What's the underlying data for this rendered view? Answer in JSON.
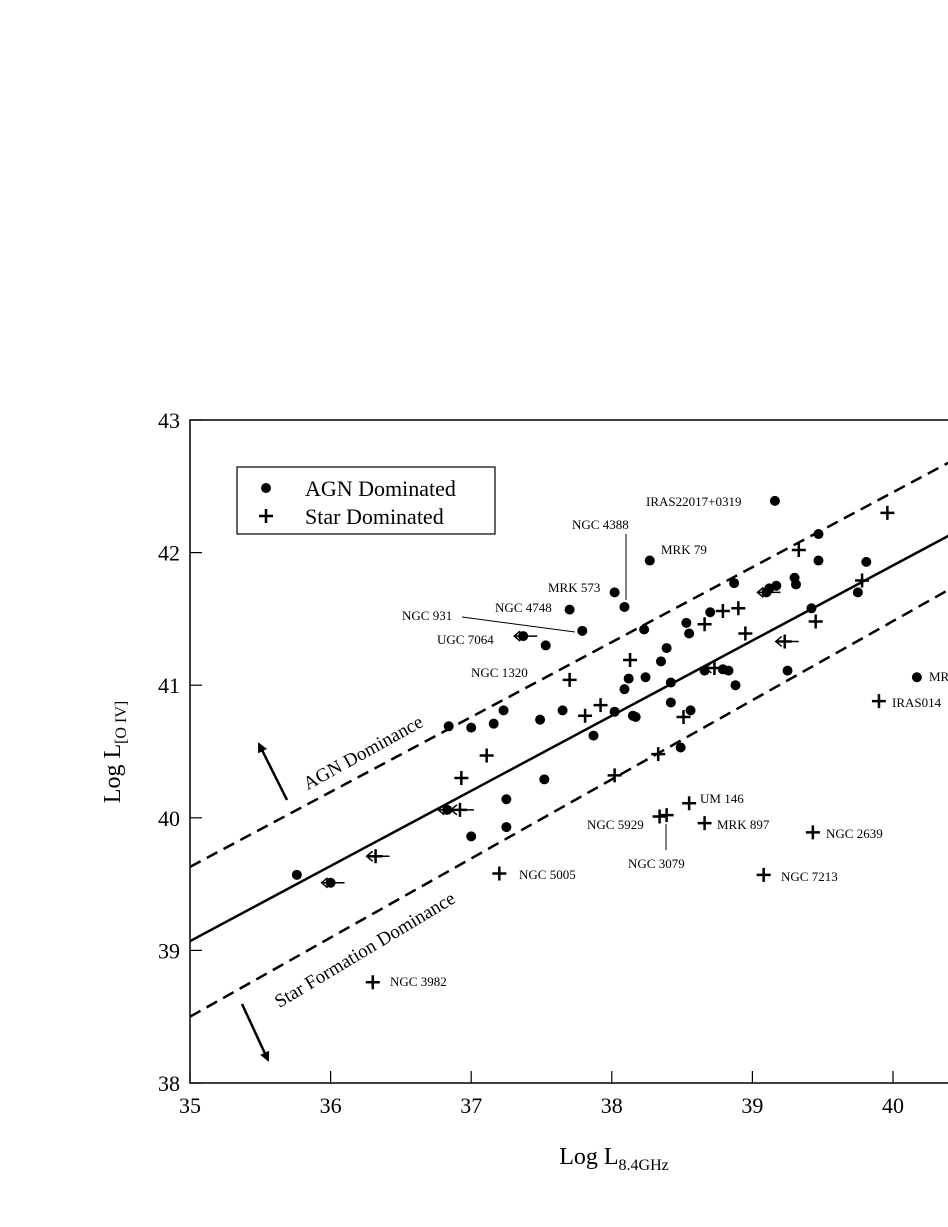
{
  "chart_data": {
    "type": "scatter",
    "x_label": "Log L",
    "x_label_sub": "8.4GHz",
    "y_label": "Log L",
    "y_label_sub": "[O IV]",
    "xlim": [
      35,
      41
    ],
    "ylim": [
      38,
      43
    ],
    "xticks": [
      35,
      36,
      37,
      38,
      39,
      40
    ],
    "yticks": [
      38,
      39,
      40,
      41,
      42,
      43
    ],
    "series": [
      {
        "name": "AGN Dominated",
        "marker": "circle",
        "color": "#000000",
        "x": [
          35.76,
          36.0,
          36.84,
          36.83,
          37.0,
          37.0,
          37.16,
          37.23,
          37.25,
          37.25,
          37.49,
          37.52,
          37.53,
          37.37,
          37.65,
          37.7,
          37.79,
          37.87,
          38.02,
          38.02,
          38.09,
          38.09,
          38.12,
          38.15,
          38.17,
          38.23,
          38.24,
          38.27,
          38.35,
          38.39,
          38.42,
          38.42,
          38.49,
          38.53,
          38.55,
          38.56,
          38.66,
          38.7,
          38.79,
          38.83,
          38.88,
          38.87,
          39.1,
          39.12,
          39.17,
          39.16,
          39.25,
          39.3,
          39.31,
          39.42,
          39.47,
          39.47,
          39.75,
          39.81,
          40.17
        ],
        "values": [
          39.57,
          39.51,
          40.69,
          40.06,
          39.86,
          40.68,
          40.71,
          40.81,
          40.14,
          39.93,
          40.74,
          40.29,
          41.3,
          41.37,
          40.81,
          41.57,
          41.41,
          40.62,
          41.7,
          40.8,
          40.97,
          41.59,
          41.05,
          40.77,
          40.76,
          41.42,
          41.06,
          41.94,
          41.18,
          41.28,
          40.87,
          41.02,
          40.53,
          41.47,
          41.39,
          40.81,
          41.11,
          41.55,
          41.12,
          41.11,
          41.0,
          41.77,
          41.7,
          41.73,
          41.75,
          42.39,
          41.11,
          41.81,
          41.76,
          41.58,
          41.94,
          42.14,
          41.7,
          41.93,
          41.06
        ],
        "x_upper_limit": [
          false,
          true,
          false,
          true,
          false,
          false,
          false,
          false,
          false,
          false,
          false,
          false,
          false,
          true,
          false,
          false,
          false,
          false,
          false,
          false,
          false,
          false,
          false,
          false,
          false,
          false,
          false,
          false,
          false,
          false,
          false,
          false,
          false,
          false,
          false,
          false,
          false,
          false,
          false,
          false,
          false,
          false,
          true,
          false,
          false,
          false,
          false,
          false,
          false,
          false,
          false,
          false,
          false,
          false,
          false
        ]
      },
      {
        "name": "Star Dominated",
        "marker": "plus",
        "color": "#000000",
        "x": [
          36.32,
          36.3,
          36.93,
          36.92,
          37.11,
          37.2,
          37.7,
          37.81,
          37.92,
          38.02,
          38.13,
          38.33,
          38.34,
          38.39,
          38.51,
          38.55,
          38.66,
          38.66,
          38.73,
          38.79,
          38.9,
          38.95,
          39.08,
          39.23,
          39.33,
          39.43,
          39.45,
          39.78,
          39.96,
          39.9
        ],
        "values": [
          39.71,
          38.76,
          40.3,
          40.06,
          40.47,
          39.58,
          41.04,
          40.77,
          40.85,
          40.32,
          41.19,
          40.48,
          40.01,
          40.02,
          40.76,
          40.11,
          41.46,
          39.96,
          41.13,
          41.56,
          41.58,
          41.39,
          39.57,
          41.33,
          42.02,
          39.89,
          41.48,
          41.79,
          42.3,
          40.88
        ],
        "x_upper_limit": [
          true,
          false,
          false,
          true,
          false,
          false,
          false,
          false,
          false,
          false,
          false,
          false,
          false,
          false,
          false,
          false,
          false,
          false,
          true,
          false,
          false,
          false,
          false,
          true,
          false,
          false,
          false,
          false,
          false,
          false
        ]
      }
    ],
    "lines": [
      {
        "style": "solid",
        "x": [
          35,
          41
        ],
        "values": [
          39.07,
          42.47
        ]
      },
      {
        "style": "dashed",
        "x": [
          35,
          41
        ],
        "values": [
          39.63,
          43.02
        ]
      },
      {
        "style": "dashed",
        "x": [
          35,
          41
        ],
        "values": [
          38.5,
          42.08
        ]
      }
    ],
    "legend_position": "upper left",
    "annotations": [
      "IRAS22017+0319",
      "NGC 4388",
      "MRK 573",
      "MRK 79",
      "NGC 4748",
      "NGC 931",
      "UGC 7064",
      "NGC 1320",
      "MR",
      "IRAS014",
      "UM 146",
      "NGC 5929",
      "MRK 897",
      "NGC 2639",
      "NGC 3079",
      "NGC 5005",
      "NGC 7213",
      "NGC 3982",
      "AGN Dominance",
      "Star Formation Dominance"
    ]
  }
}
